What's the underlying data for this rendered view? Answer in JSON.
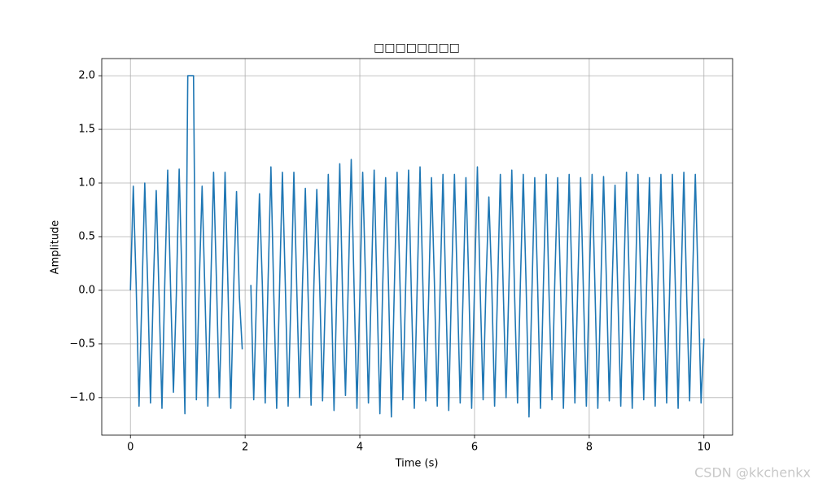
{
  "chart_data": {
    "type": "line",
    "title": "□□□□□□□□",
    "xlabel": "Time (s)",
    "ylabel": "Amplitude",
    "watermark": "CSDN @kkchenkx",
    "xlim": [
      -0.5,
      10.5
    ],
    "ylim": [
      -1.35,
      2.16
    ],
    "xticks": [
      0,
      2,
      4,
      6,
      8,
      10
    ],
    "yticks": [
      {
        "value": -1,
        "label": "−1.0"
      },
      {
        "value": -0.5,
        "label": "−0.5"
      },
      {
        "value": 0,
        "label": "0.0"
      },
      {
        "value": 0.5,
        "label": "0.5"
      },
      {
        "value": 1,
        "label": "1.0"
      },
      {
        "value": 1.5,
        "label": "1.5"
      },
      {
        "value": 2,
        "label": "2.0"
      }
    ],
    "grid": true,
    "series": [
      {
        "color": "#1f77b4",
        "x": [
          0,
          0.05,
          0.1,
          0.15,
          0.2,
          0.25,
          0.3,
          0.35,
          0.4,
          0.45,
          0.5,
          0.55,
          0.6,
          0.65,
          0.7,
          0.75,
          0.8,
          0.85,
          0.9,
          0.95,
          1,
          1.05,
          1.1,
          1.15,
          1.2,
          1.25,
          1.3,
          1.35,
          1.4,
          1.45,
          1.5,
          1.55,
          1.6,
          1.65,
          1.7,
          1.75,
          1.8,
          1.85,
          1.9,
          1.95,
          2,
          2.05,
          2.1,
          2.15,
          2.2,
          2.25,
          2.3,
          2.35,
          2.4,
          2.45,
          2.5,
          2.55,
          2.6,
          2.65,
          2.7,
          2.75,
          2.8,
          2.85,
          2.9,
          2.95,
          3,
          3.05,
          3.1,
          3.15,
          3.2,
          3.25,
          3.3,
          3.35,
          3.4,
          3.45,
          3.5,
          3.55,
          3.6,
          3.65,
          3.7,
          3.75,
          3.8,
          3.85,
          3.9,
          3.95,
          4,
          4.05,
          4.1,
          4.15,
          4.2,
          4.25,
          4.3,
          4.35,
          4.4,
          4.45,
          4.5,
          4.55,
          4.6,
          4.65,
          4.7,
          4.75,
          4.8,
          4.85,
          4.9,
          4.95,
          5,
          5.05,
          5.1,
          5.15,
          5.2,
          5.25,
          5.3,
          5.35,
          5.4,
          5.45,
          5.5,
          5.55,
          5.6,
          5.65,
          5.7,
          5.75,
          5.8,
          5.85,
          5.9,
          5.95,
          6,
          6.05,
          6.1,
          6.15,
          6.2,
          6.25,
          6.3,
          6.35,
          6.4,
          6.45,
          6.5,
          6.55,
          6.6,
          6.65,
          6.7,
          6.75,
          6.8,
          6.85,
          6.9,
          6.95,
          7,
          7.05,
          7.1,
          7.15,
          7.2,
          7.25,
          7.3,
          7.35,
          7.4,
          7.45,
          7.5,
          7.55,
          7.6,
          7.65,
          7.7,
          7.75,
          7.8,
          7.85,
          7.9,
          7.95,
          8,
          8.05,
          8.1,
          8.15,
          8.2,
          8.25,
          8.3,
          8.35,
          8.4,
          8.45,
          8.5,
          8.55,
          8.6,
          8.65,
          8.7,
          8.75,
          8.8,
          8.85,
          8.9,
          8.95,
          9,
          9.05,
          9.1,
          9.15,
          9.2,
          9.25,
          9.3,
          9.35,
          9.4,
          9.45,
          9.5,
          9.55,
          9.6,
          9.65,
          9.7,
          9.75,
          9.8,
          9.85,
          9.9,
          9.95,
          10
        ],
        "values": [
          0,
          0.97,
          0.05,
          -1.08,
          -0.06,
          1.0,
          0.08,
          -1.05,
          0.04,
          0.93,
          -0.07,
          -1.1,
          0.09,
          1.12,
          0.02,
          -0.95,
          -0.05,
          1.13,
          0.07,
          -1.15,
          2.0,
          2.0,
          2.0,
          -1.02,
          0.06,
          0.97,
          -0.04,
          -1.08,
          0.03,
          1.1,
          0.09,
          -1.0,
          -0.08,
          1.1,
          0.05,
          -1.1,
          0.02,
          0.92,
          -0.06,
          -0.55,
          null,
          null,
          0.05,
          -1.02,
          -0.03,
          0.9,
          0.06,
          -1.05,
          0.08,
          1.15,
          -0.05,
          -1.1,
          0.01,
          1.1,
          0.07,
          -1.08,
          -0.06,
          1.1,
          0.03,
          -1.0,
          0.05,
          0.95,
          -0.08,
          -1.07,
          0.07,
          0.94,
          0.04,
          -1.03,
          -0.04,
          1.08,
          0.06,
          -1.12,
          0.03,
          1.18,
          -0.07,
          -0.98,
          0.09,
          1.22,
          0.02,
          -1.1,
          -0.06,
          1.1,
          0.08,
          -1.05,
          0.04,
          1.12,
          -0.03,
          -1.15,
          0.06,
          1.05,
          0.05,
          -1.18,
          -0.02,
          1.1,
          0.07,
          -1.02,
          0.05,
          1.12,
          -0.06,
          -1.1,
          0.03,
          1.15,
          0.04,
          -1.03,
          -0.07,
          1.05,
          0.08,
          -1.08,
          0.02,
          1.08,
          -0.04,
          -1.12,
          0.08,
          1.08,
          0.03,
          -1.05,
          -0.05,
          1.05,
          0.06,
          -1.1,
          0.04,
          1.15,
          -0.02,
          -1.02,
          0.06,
          0.87,
          0.07,
          -1.08,
          -0.03,
          1.08,
          0.02,
          -1.0,
          0.05,
          1.12,
          -0.07,
          -1.05,
          0.07,
          1.08,
          0.04,
          -1.18,
          -0.04,
          1.05,
          0.06,
          -1.1,
          0.02,
          1.08,
          -0.05,
          -1.02,
          0.09,
          1.05,
          0.03,
          -1.1,
          -0.06,
          1.08,
          0.07,
          -1.05,
          0.03,
          1.05,
          -0.04,
          -1.08,
          0.05,
          1.08,
          0.02,
          -1.1,
          -0.02,
          1.06,
          0.08,
          -1.03,
          0.06,
          0.98,
          -0.05,
          -1.08,
          0.04,
          1.1,
          0.03,
          -1.1,
          -0.07,
          1.08,
          0.06,
          -1.02,
          0.03,
          1.05,
          -0.03,
          -1.08,
          0.08,
          1.08,
          0.05,
          -1.05,
          -0.04,
          1.08,
          0.07,
          -1.1,
          0.02,
          1.1,
          -0.06,
          -1.03,
          0.06,
          1.08,
          0.04,
          -1.05,
          -0.45
        ]
      }
    ]
  }
}
